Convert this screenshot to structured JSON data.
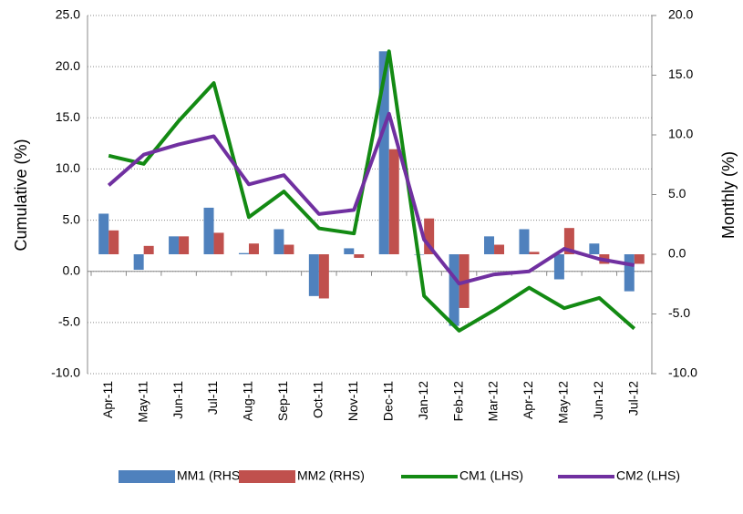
{
  "chart_data": {
    "type": "bar-line",
    "y_label": "Cumulative (%)",
    "y2_label": "Monthly (%)",
    "categories": [
      "Apr-11",
      "May-11",
      "Jun-11",
      "Jul-11",
      "Aug-11",
      "Sep-11",
      "Oct-11",
      "Nov-11",
      "Dec-11",
      "Jan-12",
      "Feb-12",
      "Mar-12",
      "Apr-12",
      "May-12",
      "Jun-12",
      "Jul-12"
    ],
    "ylim": [
      -10,
      25
    ],
    "yticks": [
      {
        "value": 25,
        "label": "25.0"
      },
      {
        "value": 20,
        "label": "20.0"
      },
      {
        "value": 15,
        "label": "15.0"
      },
      {
        "value": 10,
        "label": "10.0"
      },
      {
        "value": 5,
        "label": "5.0"
      },
      {
        "value": 0,
        "label": "0.0"
      },
      {
        "value": -5,
        "label": "-5.0"
      },
      {
        "value": -10,
        "label": "-10.0"
      }
    ],
    "y2lim": [
      -10,
      20
    ],
    "y2ticks": [
      {
        "value": 20,
        "label": "20.0"
      },
      {
        "value": 15,
        "label": "15.0"
      },
      {
        "value": 10,
        "label": "10.0"
      },
      {
        "value": 5,
        "label": "5.0"
      },
      {
        "value": 0,
        "label": "0.0"
      },
      {
        "value": -5,
        "label": "-5.0"
      },
      {
        "value": -10,
        "label": "-10.0"
      }
    ],
    "grid": true,
    "series": [
      {
        "name": "MM1 (RHS)",
        "type": "bar",
        "axis": "y2",
        "color": "#4f81bd",
        "values": [
          3.4,
          -1.3,
          1.5,
          3.9,
          0.1,
          2.1,
          -3.5,
          0.5,
          17.0,
          0.0,
          -6.0,
          1.5,
          2.1,
          -2.1,
          0.9,
          -3.1
        ]
      },
      {
        "name": "MM2 (RHS)",
        "type": "bar",
        "axis": "y2",
        "color": "#c0504d",
        "values": [
          2.0,
          0.7,
          1.5,
          1.8,
          0.9,
          0.8,
          -3.7,
          -0.3,
          8.8,
          3.0,
          -4.5,
          0.8,
          0.2,
          2.2,
          -0.8,
          -0.8
        ]
      },
      {
        "name": "CM1 (LHS)",
        "type": "line",
        "color": "#138a13",
        "values": [
          11.3,
          10.5,
          14.7,
          18.4,
          5.3,
          7.8,
          4.2,
          3.7,
          21.5,
          -2.4,
          -5.8,
          -3.8,
          -1.6,
          -3.6,
          -2.6,
          -5.6
        ]
      },
      {
        "name": "CM2 (LHS)",
        "type": "line",
        "color": "#7030a0",
        "values": [
          8.4,
          11.4,
          12.4,
          13.2,
          8.5,
          9.4,
          5.6,
          6.0,
          15.4,
          3.1,
          -1.2,
          -0.3,
          0.0,
          2.2,
          1.2,
          0.6
        ]
      }
    ]
  }
}
